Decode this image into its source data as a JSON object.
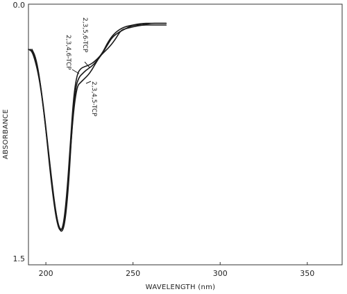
{
  "chart_data": {
    "type": "line",
    "title": "",
    "xlabel": "WAVELENGTH (nm)",
    "ylabel": "ABSORBANCE",
    "xlim": [
      190,
      370
    ],
    "ylim": [
      0.0,
      1.5
    ],
    "y_inverted": true,
    "grid": false,
    "x_ticks": [
      200,
      250,
      300,
      350
    ],
    "y_ticks": [
      0.0,
      1.5
    ],
    "y_tick_labels": [
      "0.0",
      "1.5"
    ],
    "series": [
      {
        "name": "2,3,5,6-TCP",
        "x": [
          190,
          192,
          194,
          196,
          198,
          200,
          202,
          204,
          206,
          208,
          210,
          212,
          214,
          216,
          218,
          220,
          222,
          225,
          228,
          232,
          236,
          240,
          245,
          250,
          255,
          260,
          265,
          269
        ],
        "y": [
          0.26,
          0.27,
          0.33,
          0.42,
          0.55,
          0.72,
          0.92,
          1.1,
          1.24,
          1.31,
          1.28,
          1.1,
          0.8,
          0.52,
          0.4,
          0.37,
          0.36,
          0.35,
          0.33,
          0.29,
          0.21,
          0.16,
          0.13,
          0.12,
          0.11,
          0.11,
          0.11,
          0.11
        ]
      },
      {
        "name": "2,3,4,6-TCP",
        "x": [
          191,
          193,
          195,
          197,
          199,
          201,
          203,
          205,
          207,
          209,
          211,
          213,
          215,
          217,
          219,
          221,
          223,
          226,
          229,
          232,
          235,
          238,
          242,
          246,
          250,
          255,
          260,
          265,
          269
        ],
        "y": [
          0.26,
          0.28,
          0.35,
          0.47,
          0.62,
          0.8,
          0.98,
          1.15,
          1.27,
          1.32,
          1.26,
          1.05,
          0.7,
          0.48,
          0.42,
          0.4,
          0.38,
          0.36,
          0.33,
          0.29,
          0.24,
          0.19,
          0.16,
          0.14,
          0.12,
          0.12,
          0.11,
          0.11,
          0.11
        ]
      },
      {
        "name": "2,3,4,5-TCP",
        "x": [
          192,
          194,
          196,
          198,
          200,
          202,
          204,
          206,
          208,
          210,
          212,
          214,
          216,
          218,
          220,
          222,
          225,
          228,
          231,
          234,
          237,
          240,
          243,
          246,
          250,
          255,
          260,
          265,
          269
        ],
        "y": [
          0.26,
          0.3,
          0.4,
          0.55,
          0.72,
          0.9,
          1.08,
          1.22,
          1.3,
          1.29,
          1.12,
          0.85,
          0.6,
          0.47,
          0.45,
          0.43,
          0.4,
          0.35,
          0.3,
          0.27,
          0.24,
          0.2,
          0.15,
          0.14,
          0.13,
          0.12,
          0.12,
          0.12,
          0.12
        ]
      }
    ],
    "annotations": [
      {
        "text": "2,3,5,6-TCP",
        "series": "2,3,5,6-TCP"
      },
      {
        "text": "2,3,4,6-TCP",
        "series": "2,3,4,6-TCP"
      },
      {
        "text": "2,3,4,5-TCP",
        "series": "2,3,4,5-TCP"
      }
    ]
  }
}
